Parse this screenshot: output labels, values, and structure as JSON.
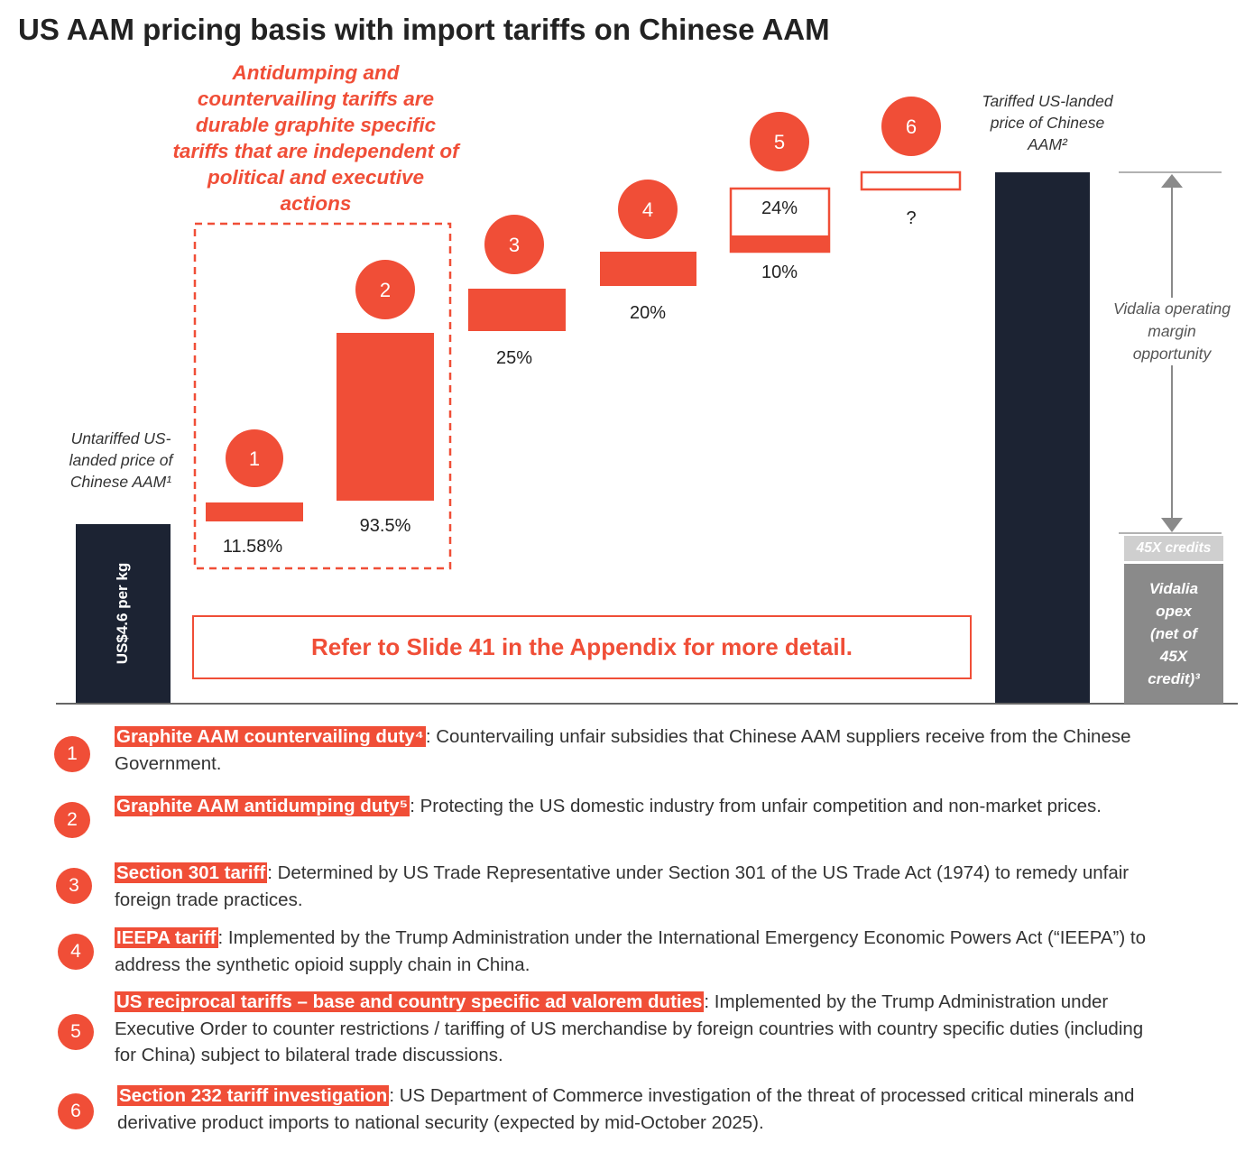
{
  "title": "US AAM pricing basis with import tariffs on Chinese AAM",
  "callout": "Antidumping and countervailing tariffs are durable graphite specific tariffs that are independent of political and executive actions",
  "start_label": "Untariffed US-landed price of Chinese AAM¹",
  "start_value": "US$4.6 per kg",
  "end_label": "Tariffed US-landed price of Chinese AAM²",
  "margin_label": "Vidalia operating margin opportunity",
  "credits_label": "45X credits",
  "opex_label": [
    "Vidalia",
    "opex",
    "(net of",
    "45X",
    "credit)³"
  ],
  "refer_note": "Refer to Slide 41 in the Appendix for more detail.",
  "colors": {
    "accent": "#f04e37",
    "navy": "#1c2333",
    "grey_dark": "#8a8a8a",
    "grey_light": "#cfcfcf"
  },
  "chart_data": {
    "type": "bar",
    "subtype": "waterfall",
    "categories": [
      "Untariffed US-landed price",
      "1",
      "2",
      "3",
      "4",
      "5",
      "6",
      "Tariffed US-landed price"
    ],
    "steps": [
      {
        "num": "1",
        "labels": [
          "11.58%"
        ]
      },
      {
        "num": "2",
        "labels": [
          "93.5%"
        ]
      },
      {
        "num": "3",
        "labels": [
          "25%"
        ]
      },
      {
        "num": "4",
        "labels": [
          "20%"
        ]
      },
      {
        "num": "5",
        "labels": [
          "10%",
          "24%"
        ],
        "segments": [
          {
            "label": "10%",
            "fill": "solid"
          },
          {
            "label": "24%",
            "fill": "outline"
          }
        ]
      },
      {
        "num": "6",
        "labels": [
          "?"
        ],
        "fill": "outline"
      }
    ],
    "start_value_label": "US$4.6 per kg"
  },
  "legend": [
    {
      "num": "1",
      "key": "Graphite AAM countervailing duty⁴",
      "text": ": Countervailing unfair subsidies that Chinese AAM suppliers receive from the Chinese Government."
    },
    {
      "num": "2",
      "key": "Graphite AAM antidumping duty⁵",
      "text": ": Protecting the US domestic industry from unfair competition and non-market prices."
    },
    {
      "num": "3",
      "key": "Section 301 tariff",
      "text": ": Determined by US Trade Representative under Section 301 of the US Trade Act (1974) to remedy unfair foreign trade practices."
    },
    {
      "num": "4",
      "key": "IEEPA tariff",
      "text": ": Implemented by the Trump Administration under the International Emergency Economic Powers Act (“IEEPA”) to address the synthetic opioid supply chain in China."
    },
    {
      "num": "5",
      "key": "US reciprocal tariffs – base and country specific ad valorem duties",
      "text": ": Implemented by the Trump Administration under Executive Order to counter restrictions / tariffing of US merchandise by foreign countries with country specific duties (including for China) subject to bilateral trade discussions."
    },
    {
      "num": "6",
      "key": "Section 232 tariff investigation",
      "text": ": US Department of Commerce investigation of the threat of processed critical minerals and derivative product imports to national security (expected by mid-October 2025)."
    }
  ]
}
